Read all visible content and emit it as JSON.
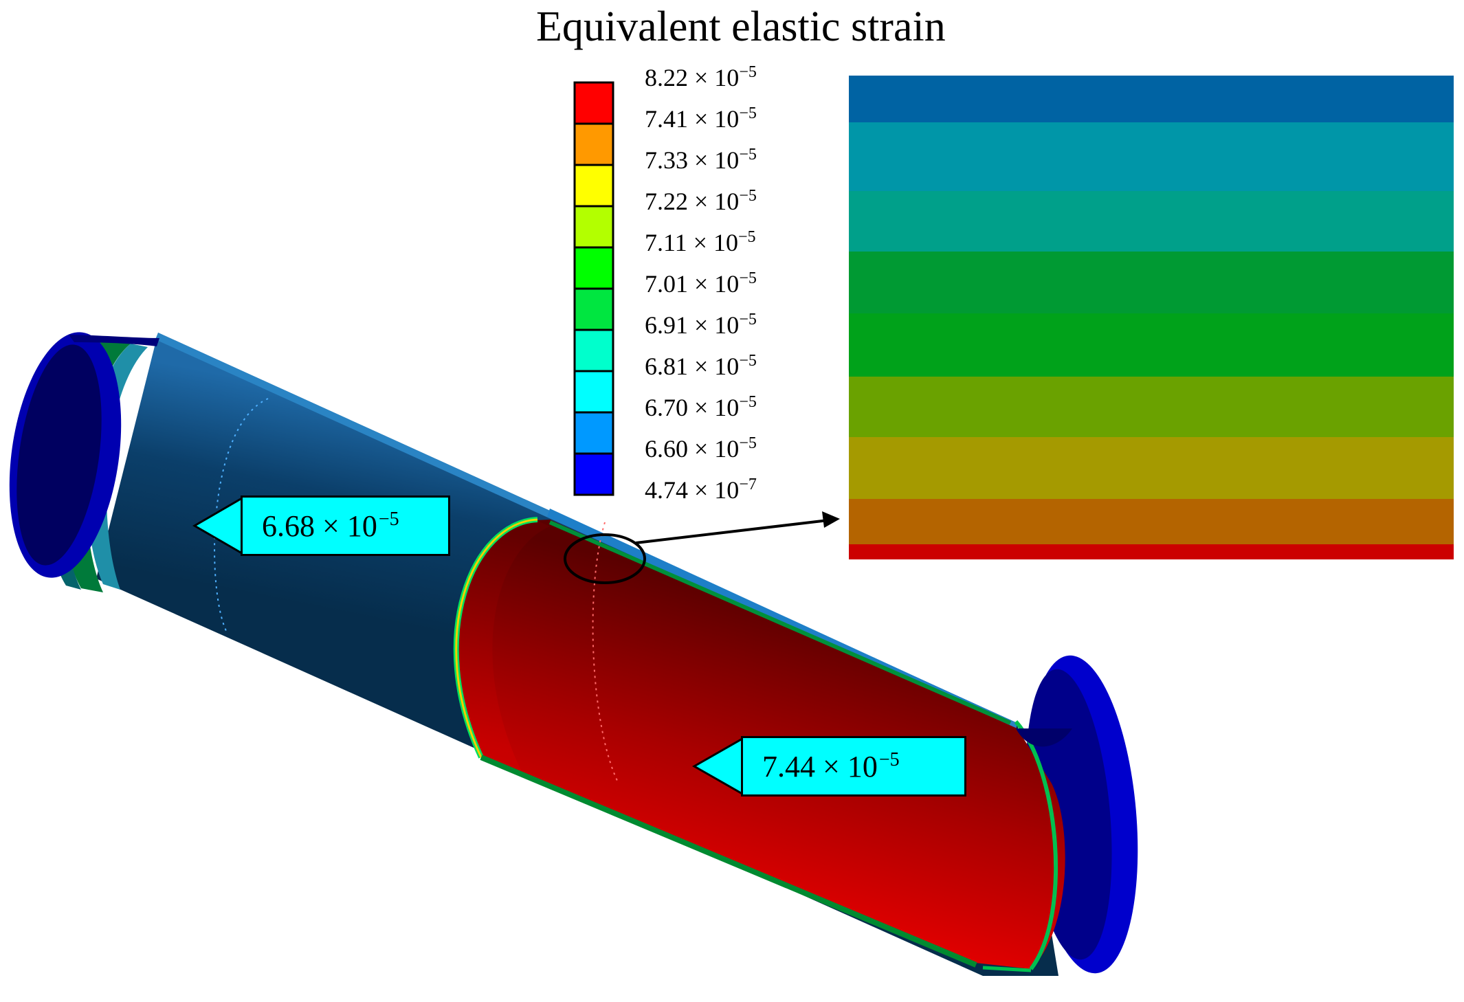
{
  "title": "Equivalent elastic strain",
  "legend": {
    "labels": [
      {
        "mantissa": "8.22",
        "exponent": "−5"
      },
      {
        "mantissa": "7.41",
        "exponent": "−5"
      },
      {
        "mantissa": "7.33",
        "exponent": "−5"
      },
      {
        "mantissa": "7.22",
        "exponent": "−5"
      },
      {
        "mantissa": "7.11",
        "exponent": "−5"
      },
      {
        "mantissa": "7.01",
        "exponent": "−5"
      },
      {
        "mantissa": "6.91",
        "exponent": "−5"
      },
      {
        "mantissa": "6.81",
        "exponent": "−5"
      },
      {
        "mantissa": "6.70",
        "exponent": "−5"
      },
      {
        "mantissa": "6.60",
        "exponent": "−5"
      },
      {
        "mantissa": "4.74",
        "exponent": "−7"
      }
    ],
    "times_sign": "×",
    "base": "10",
    "band_colors": [
      "#ff0000",
      "#ff9900",
      "#ffff00",
      "#b3ff00",
      "#00ff00",
      "#00e640",
      "#00ffcc",
      "#00ffff",
      "#0099ff",
      "#0000ff"
    ]
  },
  "callouts": {
    "outer": {
      "mantissa": "6.68",
      "exponent": "−5"
    },
    "inner": {
      "mantissa": "7.44",
      "exponent": "−5"
    }
  },
  "zoom_inset": {
    "band_colors": [
      "#0063a3",
      "#0096a8",
      "#00a08a",
      "#009a33",
      "#00a21a",
      "#6aa200",
      "#a59a00",
      "#b46400",
      "#cc0000"
    ]
  },
  "colors": {
    "outer_surface_dark": "#062d4c",
    "outer_surface_light": "#1f6aa8",
    "inner_surface_dark": "#5a0000",
    "inner_surface_bright": "#e00000",
    "end_ring": "#0000cc",
    "callout_fill": "#00ffff"
  }
}
